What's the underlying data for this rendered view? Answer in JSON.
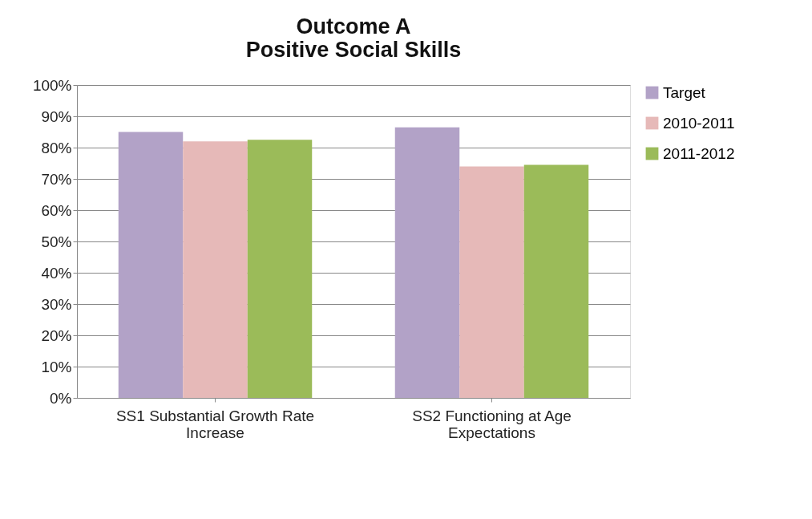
{
  "chart_data": {
    "type": "bar",
    "title": [
      "Outcome A",
      "Positive Social Skills"
    ],
    "categories": [
      "SS1 Substantial Growth Rate Increase",
      "SS2 Functioning at Age Expectations"
    ],
    "series": [
      {
        "name": "Target",
        "color": "#b2a2c7",
        "values": [
          85,
          86.5
        ]
      },
      {
        "name": "2010-2011",
        "color": "#e6b9b8",
        "values": [
          82,
          74
        ]
      },
      {
        "name": "2011-2012",
        "color": "#9bbb59",
        "values": [
          82.5,
          74.5
        ]
      }
    ],
    "ylim": [
      0,
      100
    ],
    "yticks": [
      {
        "value": 0,
        "label": "0%"
      },
      {
        "value": 10,
        "label": "10%"
      },
      {
        "value": 20,
        "label": "20%"
      },
      {
        "value": 30,
        "label": "30%"
      },
      {
        "value": 40,
        "label": "40%"
      },
      {
        "value": 50,
        "label": "50%"
      },
      {
        "value": 60,
        "label": "60%"
      },
      {
        "value": 70,
        "label": "70%"
      },
      {
        "value": 80,
        "label": "80%"
      },
      {
        "value": 90,
        "label": "90%"
      },
      {
        "value": 100,
        "label": "100%"
      }
    ],
    "grid": "y",
    "legend": "right"
  }
}
